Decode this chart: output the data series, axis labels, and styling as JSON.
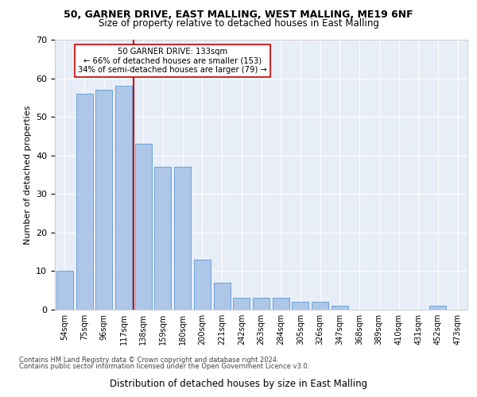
{
  "title1": "50, GARNER DRIVE, EAST MALLING, WEST MALLING, ME19 6NF",
  "title2": "Size of property relative to detached houses in East Malling",
  "xlabel": "Distribution of detached houses by size in East Malling",
  "ylabel": "Number of detached properties",
  "categories": [
    "54sqm",
    "75sqm",
    "96sqm",
    "117sqm",
    "138sqm",
    "159sqm",
    "180sqm",
    "200sqm",
    "221sqm",
    "242sqm",
    "263sqm",
    "284sqm",
    "305sqm",
    "326sqm",
    "347sqm",
    "368sqm",
    "389sqm",
    "410sqm",
    "431sqm",
    "452sqm",
    "473sqm"
  ],
  "values": [
    10,
    56,
    57,
    58,
    43,
    37,
    37,
    13,
    7,
    3,
    3,
    3,
    2,
    2,
    1,
    0,
    0,
    0,
    0,
    1,
    0
  ],
  "bar_color": "#aec6e8",
  "bar_edge_color": "#5b9bd5",
  "red_line_color": "#cc0000",
  "annotation_text": "50 GARNER DRIVE: 133sqm\n← 66% of detached houses are smaller (153)\n34% of semi-detached houses are larger (79) →",
  "annotation_box_color": "#ffffff",
  "annotation_box_edge": "#cc0000",
  "ylim": [
    0,
    70
  ],
  "yticks": [
    0,
    10,
    20,
    30,
    40,
    50,
    60,
    70
  ],
  "footer1": "Contains HM Land Registry data © Crown copyright and database right 2024.",
  "footer2": "Contains public sector information licensed under the Open Government Licence v3.0.",
  "fig_bg_color": "#ffffff",
  "plot_bg_color": "#e8eef8"
}
